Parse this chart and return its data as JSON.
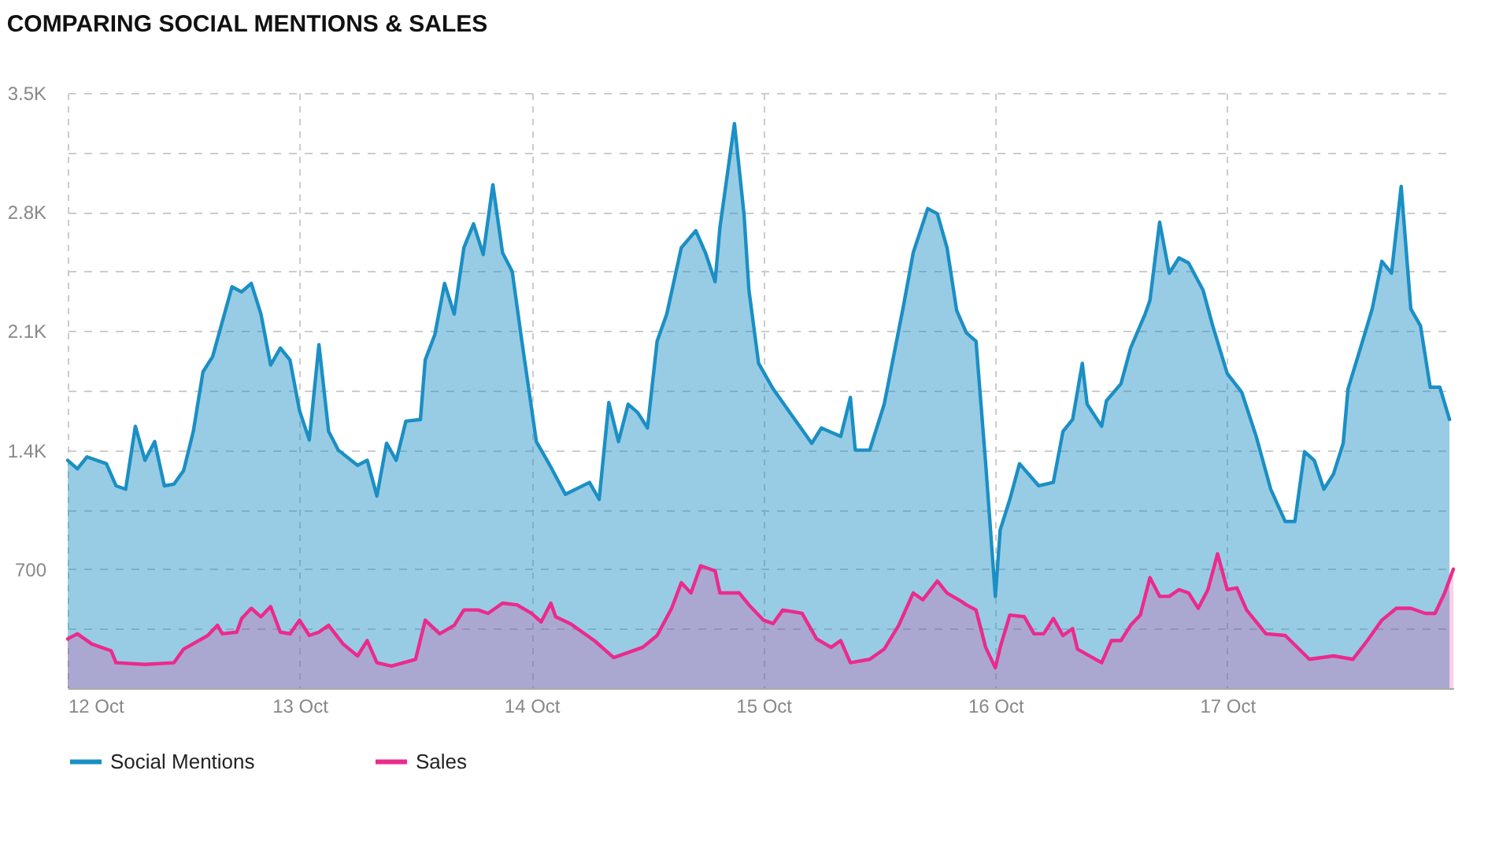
{
  "chart_data": {
    "type": "area",
    "title": "COMPARING SOCIAL MENTIONS & SALES",
    "xlim": [
      "--10-12",
      "--10-17T23:24"
    ],
    "xticks": [
      {
        "value": "--10-12",
        "label": "12 Oct"
      },
      {
        "value": "--10-13",
        "label": "13 Oct"
      },
      {
        "value": "--10-14",
        "label": "14 Oct"
      },
      {
        "value": "--10-15",
        "label": "15 Oct"
      },
      {
        "value": "--10-16",
        "label": "16 Oct"
      },
      {
        "value": "--10-17",
        "label": "17 Oct"
      }
    ],
    "ylim": [
      0,
      3500
    ],
    "yticks": [
      {
        "value": 350,
        "label": null
      },
      {
        "value": 700,
        "label": "700"
      },
      {
        "value": 1050,
        "label": null
      },
      {
        "value": 1400,
        "label": "1.4K"
      },
      {
        "value": 1750,
        "label": null
      },
      {
        "value": 2100,
        "label": "2.1K"
      },
      {
        "value": 2450,
        "label": null
      },
      {
        "value": 2800,
        "label": "2.8K"
      },
      {
        "value": 3150,
        "label": null
      },
      {
        "value": 3500,
        "label": "3.5K"
      }
    ],
    "grid": true,
    "legend": "bottom",
    "series": [
      {
        "name": "Social Mentions",
        "color": "#1b8fc4",
        "x": [
          "--10-12T00:00",
          "--10-12T01:00",
          "--10-12T02:00",
          "--10-12T04:00",
          "--10-12T05:00",
          "--10-12T06:00",
          "--10-12T07:00",
          "--10-12T08:00",
          "--10-12T09:00",
          "--10-12T10:00",
          "--10-12T11:00",
          "--10-12T12:00",
          "--10-12T13:00",
          "--10-12T14:00",
          "--10-12T15:00",
          "--10-12T17:00",
          "--10-12T18:00",
          "--10-12T19:00",
          "--10-12T20:00",
          "--10-12T21:00",
          "--10-12T22:00",
          "--10-12T23:00",
          "--10-13T00:00",
          "--10-13T01:00",
          "--10-13T02:00",
          "--10-13T03:00",
          "--10-13T04:00",
          "--10-13T06:00",
          "--10-13T07:00",
          "--10-13T08:00",
          "--10-13T09:00",
          "--10-13T10:00",
          "--10-13T11:00",
          "--10-13T12:30",
          "--10-13T13:00",
          "--10-13T14:00",
          "--10-13T15:00",
          "--10-13T16:00",
          "--10-13T17:00",
          "--10-13T18:00",
          "--10-13T19:00",
          "--10-13T20:00",
          "--10-13T21:00",
          "--10-13T22:00",
          "--10-13T23:00",
          "--10-14T00:30",
          "--10-14T02:00",
          "--10-14T03:30",
          "--10-14T06:00",
          "--10-14T07:00",
          "--10-14T08:00",
          "--10-14T09:00",
          "--10-14T10:00",
          "--10-14T11:00",
          "--10-14T12:00",
          "--10-14T13:00",
          "--10-14T14:00",
          "--10-14T15:30",
          "--10-14T17:00",
          "--10-14T18:00",
          "--10-14T19:00",
          "--10-14T19:30",
          "--10-14T21:00",
          "--10-14T22:00",
          "--10-14T22:30",
          "--10-14T23:30",
          "--10-15T01:00",
          "--10-15T03:00",
          "--10-15T05:00",
          "--10-15T06:00",
          "--10-15T08:00",
          "--10-15T09:00",
          "--10-15T09:30",
          "--10-15T11:00",
          "--10-15T12:30",
          "--10-15T14:30",
          "--10-15T15:30",
          "--10-15T17:00",
          "--10-15T18:00",
          "--10-15T19:00",
          "--10-15T20:00",
          "--10-15T21:00",
          "--10-15T22:00",
          "--10-15T23:00",
          "--10-16T00:00",
          "--10-16T00:30",
          "--10-16T01:30",
          "--10-16T02:30",
          "--10-16T04:30",
          "--10-16T06:00",
          "--10-16T07:00",
          "--10-16T08:00",
          "--10-16T09:00",
          "--10-16T09:30",
          "--10-16T11:00",
          "--10-16T11:30",
          "--10-16T13:00",
          "--10-16T14:00",
          "--10-16T15:30",
          "--10-16T16:00",
          "--10-16T17:00",
          "--10-16T18:00",
          "--10-16T19:00",
          "--10-16T20:00",
          "--10-16T21:30",
          "--10-16T22:30",
          "--10-17T00:00",
          "--10-17T01:30",
          "--10-17T03:00",
          "--10-17T04:30",
          "--10-17T06:00",
          "--10-17T07:00",
          "--10-17T08:00",
          "--10-17T09:00",
          "--10-17T10:00",
          "--10-17T11:00",
          "--10-17T12:00",
          "--10-17T12:30",
          "--10-17T14:00",
          "--10-17T15:00",
          "--10-17T16:00",
          "--10-17T17:00",
          "--10-17T18:00",
          "--10-17T19:00",
          "--10-17T20:00",
          "--10-17T21:00",
          "--10-17T22:00",
          "--10-17T23:00"
        ],
        "values": [
          1340,
          1290,
          1360,
          1320,
          1190,
          1170,
          1540,
          1340,
          1450,
          1190,
          1200,
          1280,
          1510,
          1860,
          1950,
          2360,
          2330,
          2380,
          2200,
          1900,
          2000,
          1930,
          1630,
          1460,
          2020,
          1510,
          1400,
          1310,
          1340,
          1130,
          1440,
          1340,
          1570,
          1580,
          1930,
          2080,
          2380,
          2200,
          2590,
          2730,
          2550,
          2960,
          2560,
          2450,
          2040,
          1450,
          1300,
          1140,
          1210,
          1110,
          1680,
          1450,
          1670,
          1620,
          1530,
          2040,
          2200,
          2590,
          2690,
          2560,
          2390,
          2710,
          3320,
          2780,
          2340,
          1910,
          1760,
          1600,
          1440,
          1530,
          1480,
          1710,
          1400,
          1400,
          1670,
          2250,
          2560,
          2820,
          2790,
          2590,
          2220,
          2090,
          2040,
          1320,
          540,
          930,
          1110,
          1320,
          1190,
          1210,
          1510,
          1580,
          1910,
          1670,
          1540,
          1690,
          1790,
          2000,
          2200,
          2280,
          2740,
          2440,
          2530,
          2500,
          2340,
          2130,
          1850,
          1740,
          1480,
          1170,
          980,
          980,
          1390,
          1340,
          1170,
          1260,
          1440,
          1760,
          2040,
          2230,
          2510,
          2440,
          2950,
          2230,
          2130,
          1770,
          1770,
          1580
        ]
      },
      {
        "name": "Sales",
        "color": "#ec2a8c",
        "x": [
          "--10-12T00:00",
          "--10-12T01:00",
          "--10-12T02:30",
          "--10-12T04:30",
          "--10-12T05:00",
          "--10-12T08:00",
          "--10-12T11:00",
          "--10-12T12:00",
          "--10-12T14:30",
          "--10-12T15:30",
          "--10-12T16:00",
          "--10-12T17:30",
          "--10-12T18:00",
          "--10-12T19:00",
          "--10-12T20:00",
          "--10-12T21:00",
          "--10-12T22:00",
          "--10-12T23:00",
          "--10-13T00:00",
          "--10-13T01:00",
          "--10-13T02:00",
          "--10-13T03:00",
          "--10-13T04:30",
          "--10-13T06:00",
          "--10-13T07:00",
          "--10-13T08:00",
          "--10-13T09:30",
          "--10-13T12:00",
          "--10-13T13:00",
          "--10-13T14:30",
          "--10-13T16:00",
          "--10-13T17:00",
          "--10-13T18:30",
          "--10-13T19:30",
          "--10-13T21:00",
          "--10-13T22:30",
          "--10-14T00:00",
          "--10-14T01:00",
          "--10-14T02:00",
          "--10-14T02:30",
          "--10-14T04:00",
          "--10-14T06:30",
          "--10-14T08:30",
          "--10-14T11:30",
          "--10-14T13:00",
          "--10-14T14:30",
          "--10-14T15:30",
          "--10-14T16:30",
          "--10-14T17:30",
          "--10-14T19:00",
          "--10-14T19:30",
          "--10-14T21:30",
          "--10-14T22:30",
          "--10-15T00:00",
          "--10-15T01:00",
          "--10-15T02:00",
          "--10-15T04:00",
          "--10-15T05:30",
          "--10-15T07:00",
          "--10-15T08:00",
          "--10-15T09:00",
          "--10-15T11:00",
          "--10-15T12:30",
          "--10-15T14:00",
          "--10-15T15:30",
          "--10-15T16:30",
          "--10-15T18:00",
          "--10-15T19:00",
          "--10-15T20:30",
          "--10-15T21:00",
          "--10-15T22:00",
          "--10-15T23:00",
          "--10-16T00:00",
          "--10-16T00:30",
          "--10-16T01:30",
          "--10-16T03:00",
          "--10-16T04:00",
          "--10-16T05:00",
          "--10-16T06:00",
          "--10-16T07:00",
          "--10-16T08:00",
          "--10-16T08:30",
          "--10-16T11:00",
          "--10-16T12:00",
          "--10-16T13:00",
          "--10-16T14:00",
          "--10-16T15:00",
          "--10-16T16:00",
          "--10-16T17:00",
          "--10-16T18:00",
          "--10-16T19:00",
          "--10-16T20:00",
          "--10-16T21:00",
          "--10-16T22:00",
          "--10-16T23:00",
          "--10-17T00:00",
          "--10-17T01:00",
          "--10-17T02:00",
          "--10-17T04:00",
          "--10-17T06:00",
          "--10-17T08:30",
          "--10-17T11:00",
          "--10-17T13:00",
          "--10-17T14:30",
          "--10-17T16:00",
          "--10-17T17:30",
          "--10-17T19:00",
          "--10-17T20:30",
          "--10-17T21:30",
          "--10-17T22:30",
          "--10-17T23:24"
        ],
        "values": [
          290,
          320,
          260,
          220,
          150,
          140,
          150,
          230,
          310,
          370,
          320,
          330,
          410,
          470,
          420,
          480,
          330,
          320,
          400,
          310,
          330,
          370,
          260,
          190,
          280,
          150,
          130,
          170,
          400,
          320,
          370,
          460,
          460,
          440,
          500,
          490,
          440,
          390,
          500,
          420,
          380,
          280,
          180,
          240,
          310,
          470,
          620,
          560,
          720,
          690,
          560,
          560,
          490,
          400,
          380,
          460,
          440,
          290,
          240,
          280,
          150,
          170,
          230,
          370,
          560,
          520,
          630,
          560,
          510,
          490,
          460,
          240,
          120,
          240,
          430,
          420,
          320,
          320,
          410,
          310,
          350,
          230,
          150,
          280,
          280,
          370,
          430,
          650,
          540,
          540,
          580,
          560,
          470,
          580,
          790,
          580,
          590,
          460,
          320,
          310,
          170,
          190,
          170,
          280,
          400,
          470,
          470,
          440,
          440,
          560,
          700
        ]
      }
    ]
  }
}
